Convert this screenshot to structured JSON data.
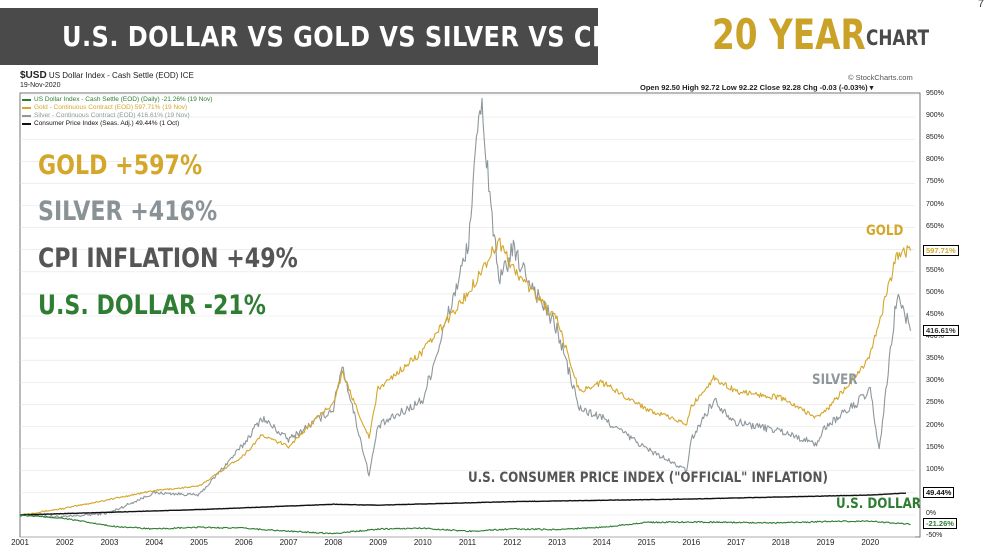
{
  "header": {
    "banner_title": "U.S. DOLLAR VS GOLD VS SILVER VS CPI",
    "period_big": "20 YEAR",
    "period_word": "CHART",
    "corner_mark": "7"
  },
  "stockcharts": {
    "symbol": "$USD",
    "symbol_desc": "US Dollar Index - Cash Settle (EOD) ICE",
    "date": "19-Nov-2020",
    "credit": "© StockCharts.com",
    "quote": "Open 92.50  High 92.72  Low 92.22  Close 92.28  Chg -0.03 (-0.03%) ▾"
  },
  "legend": [
    {
      "label": "US Dollar Index - Cash Settle (EOD) (Daily) -21.26% (19 Nov)",
      "color": "#2e7d32"
    },
    {
      "label": "Gold - Continuous Contract (EOD) 597.71% (19 Nov)",
      "color": "#d4a62a"
    },
    {
      "label": "Silver - Continuous Contract (EOD) 416.61% (19 Nov)",
      "color": "#8e979c"
    },
    {
      "label": "Consumer Price Index (Seas. Adj.) 49.44% (1 Oct)",
      "color": "#111111"
    }
  ],
  "summary": {
    "gold": "GOLD +597%",
    "silver": "SILVER +416%",
    "cpi": "CPI INFLATION +49%",
    "usd": "U.S. DOLLAR -21%"
  },
  "annotations": {
    "gold": "GOLD",
    "silver": "SILVER",
    "cpi": "U.S. CONSUMER PRICE INDEX (\"OFFICIAL\" INFLATION)",
    "usd": "U.S. DOLLAR"
  },
  "colors": {
    "gold": "#d4a62a",
    "silver": "#8e979c",
    "cpi": "#111111",
    "usd": "#2e7d32",
    "summary_cpi": "#555555",
    "summary_silver": "#8a9296"
  },
  "chart_data": {
    "type": "line",
    "x_unit": "year",
    "xlim": [
      2001,
      2021
    ],
    "ylim": [
      -50,
      950
    ],
    "y_ticks": [
      "950%",
      "900%",
      "850%",
      "800%",
      "750%",
      "700%",
      "650%",
      "600%",
      "550%",
      "500%",
      "450%",
      "400%",
      "350%",
      "300%",
      "250%",
      "200%",
      "150%",
      "100%",
      "50%",
      "0%",
      "-50%"
    ],
    "x_ticks": [
      "2001",
      "2002",
      "2003",
      "2004",
      "2005",
      "2006",
      "2007",
      "2008",
      "2009",
      "2010",
      "2011",
      "2012",
      "2013",
      "2014",
      "2015",
      "2016",
      "2017",
      "2018",
      "2019",
      "2020"
    ],
    "last_values": [
      "597.71%",
      "416.61%",
      "49.44%",
      "-21.26%"
    ],
    "series": [
      {
        "name": "Gold - Continuous Contract (EOD)",
        "key": "gold",
        "x": [
          2001,
          2002,
          2003,
          2004,
          2005,
          2006,
          2006.4,
          2007,
          2008,
          2008.2,
          2008.8,
          2009,
          2010,
          2011,
          2011.7,
          2012,
          2013,
          2013.5,
          2014,
          2015,
          2015.9,
          2016,
          2016.5,
          2017,
          2018,
          2018.8,
          2019,
          2019.6,
          2020,
          2020.6,
          2020.9
        ],
        "y": [
          0,
          15,
          35,
          55,
          65,
          135,
          180,
          155,
          255,
          320,
          175,
          285,
          370,
          500,
          620,
          560,
          440,
          280,
          300,
          240,
          205,
          245,
          310,
          280,
          265,
          220,
          235,
          305,
          360,
          590,
          597.71
        ]
      },
      {
        "name": "Silver - Continuous Contract (EOD)",
        "key": "silver",
        "x": [
          2001,
          2002,
          2003,
          2004,
          2005,
          2006,
          2006.4,
          2007,
          2008,
          2008.2,
          2008.8,
          2009,
          2010,
          2011,
          2011.3,
          2011.7,
          2012,
          2013,
          2013.5,
          2014,
          2015,
          2015.9,
          2016,
          2016.5,
          2017,
          2018,
          2018.8,
          2019,
          2019.6,
          2020,
          2020.2,
          2020.6,
          2020.9
        ],
        "y": [
          0,
          -5,
          5,
          50,
          45,
          160,
          220,
          170,
          240,
          340,
          90,
          200,
          260,
          600,
          940,
          520,
          600,
          420,
          240,
          220,
          150,
          100,
          170,
          260,
          210,
          190,
          160,
          200,
          245,
          280,
          145,
          500,
          416.61
        ]
      },
      {
        "name": "Consumer Price Index (Seas. Adj.)",
        "key": "cpi",
        "x": [
          2001,
          2005,
          2008,
          2009,
          2012,
          2016,
          2020,
          2020.8
        ],
        "y": [
          0,
          12,
          24,
          22,
          30,
          36,
          45,
          49.44
        ]
      },
      {
        "name": "US Dollar Index - Cash Settle (EOD)",
        "key": "usd",
        "x": [
          2001,
          2002,
          2003,
          2004,
          2005,
          2006,
          2007,
          2008,
          2009,
          2010,
          2011,
          2012,
          2013,
          2014,
          2015,
          2016,
          2017,
          2018,
          2019,
          2020,
          2020.9
        ],
        "y": [
          0,
          -8,
          -25,
          -32,
          -28,
          -30,
          -37,
          -42,
          -32,
          -30,
          -37,
          -32,
          -33,
          -28,
          -17,
          -16,
          -17,
          -18,
          -15,
          -14,
          -21.26
        ]
      }
    ]
  }
}
